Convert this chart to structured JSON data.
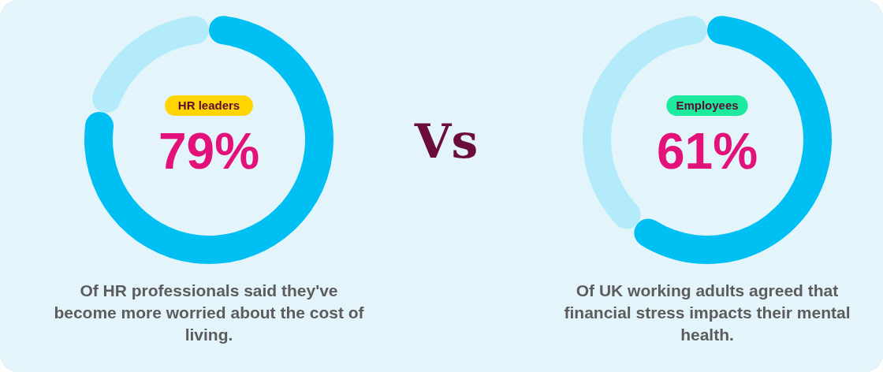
{
  "chart_data": [
    {
      "type": "donut",
      "title": "HR leaders",
      "categories": [
        null,
        null
      ],
      "values": [
        79,
        21
      ],
      "colors": [
        "#00bff3",
        "#b3ebfa"
      ],
      "value_labels": [
        "79%",
        null
      ],
      "annotations": [
        "Of HR professionals said they've become more worried about the cost of living.",
        "Vs"
      ]
    },
    {
      "type": "donut",
      "title": "Employees",
      "categories": [
        null,
        null
      ],
      "values": [
        61,
        39
      ],
      "colors": [
        "#00bff3",
        "#b3ebfa"
      ],
      "value_labels": [
        "61%",
        null
      ],
      "annotations": [
        "Of UK working adults agreed that financial stress impacts their mental health."
      ]
    }
  ]
}
